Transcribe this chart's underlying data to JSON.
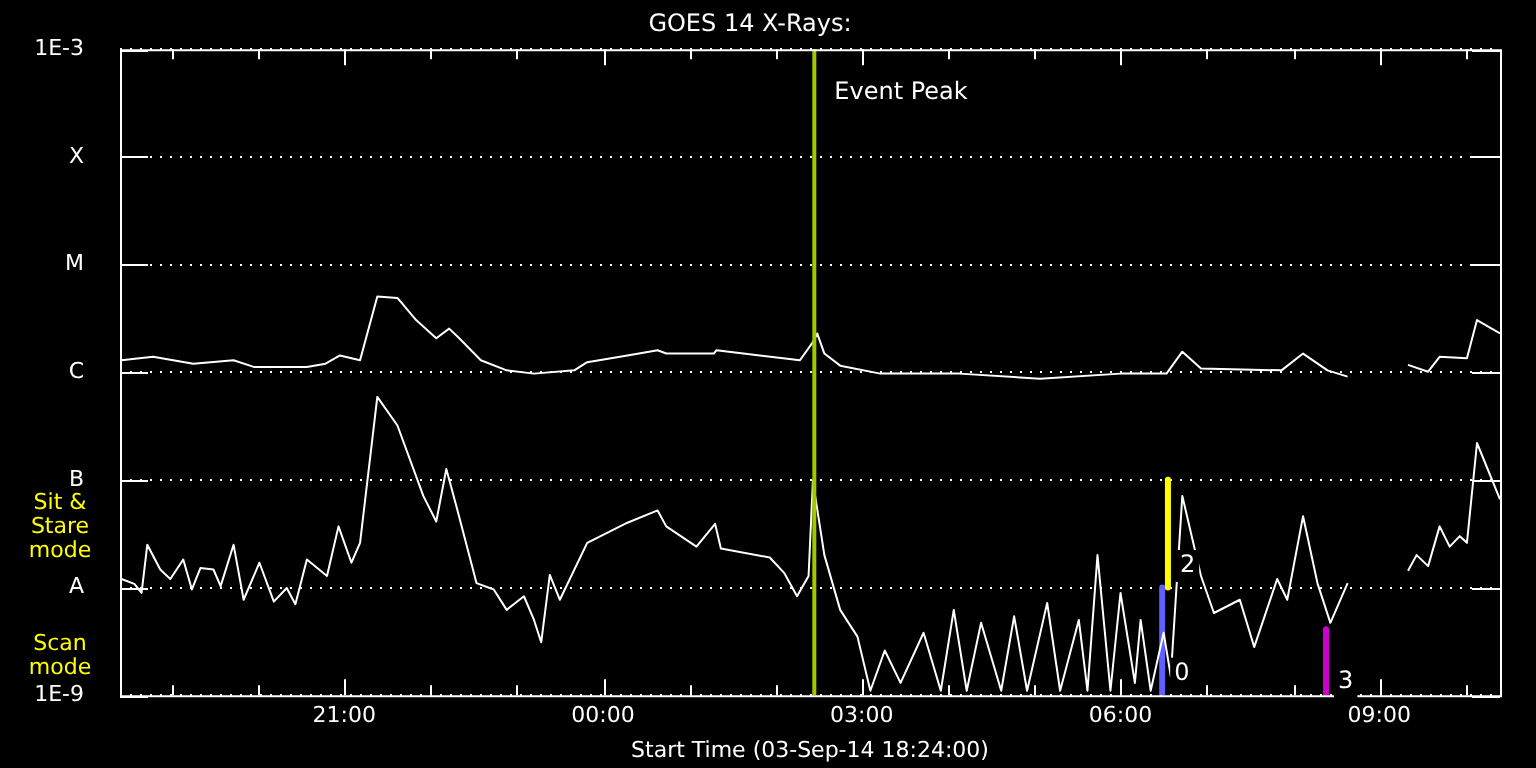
{
  "chart_data": {
    "type": "line",
    "title": "GOES 14 X-Rays:",
    "xlabel": "Start Time (03-Sep-14 18:24:00)",
    "annotations": [
      "Sit & Stare mode",
      "Scan mode"
    ],
    "xlim": [
      "--09-03T18:24",
      "--09-04T10:24"
    ],
    "xticks": [
      {
        "value": "--09-03T19:00",
        "label": null
      },
      {
        "value": "--09-03T20:00",
        "label": null
      },
      {
        "value": "--09-03T21:00",
        "label": "21:00"
      },
      {
        "value": "--09-03T22:00",
        "label": null
      },
      {
        "value": "--09-03T23:00",
        "label": null
      },
      {
        "value": "--09-04T00:00",
        "label": "00:00"
      },
      {
        "value": "--09-04T01:00",
        "label": null
      },
      {
        "value": "--09-04T02:00",
        "label": null
      },
      {
        "value": "--09-04T03:00",
        "label": "03:00"
      },
      {
        "value": "--09-04T04:00",
        "label": null
      },
      {
        "value": "--09-04T05:00",
        "label": null
      },
      {
        "value": "--09-04T06:00",
        "label": "06:00"
      },
      {
        "value": "--09-04T07:00",
        "label": null
      },
      {
        "value": "--09-04T08:00",
        "label": null
      },
      {
        "value": "--09-04T09:00",
        "label": "09:00"
      },
      {
        "value": "--09-04T10:00",
        "label": null
      }
    ],
    "ylim": [
      1e-09,
      0.001
    ],
    "yticks": [
      {
        "value": 1e-09,
        "label": "1E-9"
      },
      {
        "value": 1e-08,
        "label": "A"
      },
      {
        "value": 1e-07,
        "label": "B"
      },
      {
        "value": 1e-06,
        "label": "C"
      },
      {
        "value": 1e-05,
        "label": "M"
      },
      {
        "value": 0.0001,
        "label": "X"
      },
      {
        "value": 0.001,
        "label": "1E-3"
      }
    ],
    "log": "y",
    "grid": "y",
    "legend": false,
    "marker": "none",
    "ref_lines": [
      {
        "axis": "x",
        "value": "--09-04T02:27",
        "label": "Event Peak",
        "color": "#a0c800"
      }
    ],
    "series": [
      {
        "color": "#ffffff",
        "x": [
          "--09-03T18:25",
          "--09-03T18:47",
          "--09-03T19:15",
          "--09-03T19:43",
          "--09-03T19:57",
          "--09-03T20:34",
          "--09-03T20:47",
          "--09-03T20:57",
          "--09-03T21:11",
          "--09-03T21:23",
          "--09-03T21:37",
          "--09-03T21:50",
          "--09-03T22:04",
          "--09-03T22:13",
          "--09-03T22:20",
          "--09-03T22:35",
          "--09-03T22:53",
          "--09-03T23:12",
          "--09-03T23:40",
          "--09-03T23:49",
          "--09-04T00:17",
          "--09-04T00:38",
          "--09-04T00:44",
          "--09-04T01:17",
          "--09-04T01:19",
          "--09-04T01:49",
          "--09-04T02:17",
          "--09-04T02:26",
          "--09-04T02:29",
          "--09-04T02:34",
          "--09-04T02:45",
          "--09-04T03:13",
          "--09-04T04:08",
          "--09-04T05:04",
          "--09-04T06:00",
          "--09-04T06:32",
          "--09-04T06:43",
          "--09-04T06:56",
          "--09-04T07:52",
          "--09-04T08:07",
          "--09-04T08:24",
          "--09-04T08:38",
          "--09-04T09:00",
          "--09-04T09:20",
          "--09-04T09:34",
          "--09-04T09:42",
          "--09-04T10:01",
          "--09-04T10:08",
          "--09-04T10:24"
        ],
        "values": [
          1.29e-06,
          1.39e-06,
          1.2e-06,
          1.29e-06,
          1.12e-06,
          1.12e-06,
          1.2e-06,
          1.43e-06,
          1.29e-06,
          5.04e-06,
          4.9e-06,
          3.05e-06,
          2.07e-06,
          2.54e-06,
          2.07e-06,
          1.29e-06,
          1.04e-06,
          9.7e-07,
          1.04e-06,
          1.24e-06,
          1.43e-06,
          1.6e-06,
          1.49e-06,
          1.49e-06,
          1.6e-06,
          1.43e-06,
          1.29e-06,
          1.9e-06,
          2.29e-06,
          1.49e-06,
          1.15e-06,
          9.7e-07,
          9.7e-07,
          8.7e-07,
          9.7e-07,
          9.7e-07,
          1.55e-06,
          1.08e-06,
          1.04e-06,
          1.49e-06,
          1.04e-06,
          9.1e-07,
          null,
          1.17e-06,
          1.01e-06,
          1.39e-06,
          1.35e-06,
          3.05e-06,
          2.29e-06
        ]
      },
      {
        "color": "#ffffff",
        "x": [
          "--09-03T18:25",
          "--09-03T18:34",
          "--09-03T18:39",
          "--09-03T18:43",
          "--09-03T18:52",
          "--09-03T18:59",
          "--09-03T19:08",
          "--09-03T19:14",
          "--09-03T19:20",
          "--09-03T19:29",
          "--09-03T19:34",
          "--09-03T19:43",
          "--09-03T19:50",
          "--09-03T20:01",
          "--09-03T20:11",
          "--09-03T20:20",
          "--09-03T20:26",
          "--09-03T20:34",
          "--09-03T20:48",
          "--09-03T20:56",
          "--09-03T21:05",
          "--09-03T21:11",
          "--09-03T21:23",
          "--09-03T21:37",
          "--09-03T21:55",
          "--09-03T22:04",
          "--09-03T22:11",
          "--09-03T22:18",
          "--09-03T22:32",
          "--09-03T22:44",
          "--09-03T22:53",
          "--09-03T23:05",
          "--09-03T23:12",
          "--09-03T23:17",
          "--09-03T23:23",
          "--09-03T23:30",
          "--09-03T23:49",
          "--09-04T00:17",
          "--09-04T00:38",
          "--09-04T00:44",
          "--09-04T01:05",
          "--09-04T01:18",
          "--09-04T01:22",
          "--09-04T01:56",
          "--09-04T02:06",
          "--09-04T02:15",
          "--09-04T02:23",
          "--09-04T02:26",
          "--09-04T02:34",
          "--09-04T02:45",
          "--09-04T02:57",
          "--09-04T03:06",
          "--09-04T03:16",
          "--09-04T03:27",
          "--09-04T03:43",
          "--09-04T03:55",
          "--09-04T04:04",
          "--09-04T04:13",
          "--09-04T04:23",
          "--09-04T04:37",
          "--09-04T04:46",
          "--09-04T04:55",
          "--09-04T05:09",
          "--09-04T05:18",
          "--09-04T05:31",
          "--09-04T05:37",
          "--09-04T05:44",
          "--09-04T05:53",
          "--09-04T06:00",
          "--09-04T06:10",
          "--09-04T06:14",
          "--09-04T06:21",
          "--09-04T06:30",
          "--09-04T06:35",
          "--09-04T06:43",
          "--09-04T06:56",
          "--09-04T07:05",
          "--09-04T07:23",
          "--09-04T07:33",
          "--09-04T07:49",
          "--09-04T07:56",
          "--09-04T08:07",
          "--09-04T08:17",
          "--09-04T08:26",
          "--09-04T08:38",
          "--09-04T09:00",
          "--09-04T09:20",
          "--09-04T09:26",
          "--09-04T09:34",
          "--09-04T09:42",
          "--09-04T09:49",
          "--09-04T09:56",
          "--09-04T10:01",
          "--09-04T10:08",
          "--09-04T10:24"
        ],
        "values": [
          1.2e-08,
          1.08e-08,
          8.9e-09,
          2.5e-08,
          1.47e-08,
          1.2e-08,
          1.82e-08,
          9.6e-09,
          1.52e-08,
          1.47e-08,
          1.03e-08,
          2.5e-08,
          7.7e-09,
          1.7e-08,
          7.4e-09,
          9.9e-09,
          7e-09,
          1.82e-08,
          1.28e-08,
          3.7e-08,
          1.7e-08,
          2.6e-08,
          5.9e-07,
          3.2e-07,
          7.1e-08,
          4.1e-08,
          1.26e-07,
          5.7e-08,
          1.1e-08,
          9.6e-09,
          6.2e-09,
          8.3e-09,
          5e-09,
          3.1e-09,
          1.31e-08,
          7.7e-09,
          2.6e-08,
          4e-08,
          5.2e-08,
          3.7e-08,
          2.4e-08,
          3.9e-08,
          2.3e-08,
          1.9e-08,
          1.37e-08,
          8.3e-09,
          1.28e-08,
          9.7e-08,
          2e-08,
          6.2e-09,
          3.5e-09,
          1.1e-09,
          2.6e-09,
          1.3e-09,
          3.8e-09,
          1.1e-09,
          6.2e-09,
          1.1e-09,
          4.7e-09,
          1.1e-09,
          5.4e-09,
          1.1e-09,
          7.2e-09,
          1.1e-09,
          5e-09,
          1.1e-09,
          2e-08,
          1.1e-09,
          8.9e-09,
          1.3e-09,
          5e-09,
          1.1e-09,
          3.8e-09,
          1.5e-09,
          7.1e-08,
          1.28e-08,
          5.8e-09,
          7.7e-09,
          2.8e-09,
          1.2e-08,
          7.7e-09,
          4.6e-08,
          1.1e-08,
          4.7e-09,
          1.1e-08,
          null,
          1.43e-08,
          2e-08,
          1.58e-08,
          3.7e-08,
          2.4e-08,
          3e-08,
          2.6e-08,
          2.2e-07,
          6.6e-08
        ]
      },
      {
        "name": "2",
        "color": "#ffff00",
        "x": [
          "--09-04T06:33",
          "--09-04T06:33"
        ],
        "values": [
          1e-07,
          1e-08
        ]
      },
      {
        "name": "0",
        "color": "#6060ff",
        "x": [
          "--09-04T06:29",
          "--09-04T06:29"
        ],
        "values": [
          1e-08,
          1e-09
        ]
      },
      {
        "name": "3",
        "color": "#cc00cc",
        "x": [
          "--09-04T08:23",
          "--09-04T08:23"
        ],
        "values": [
          4.1e-09,
          1e-09
        ]
      }
    ]
  }
}
